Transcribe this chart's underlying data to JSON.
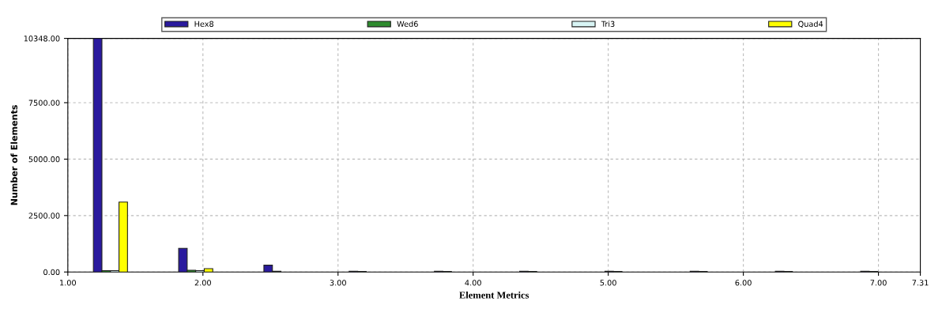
{
  "chart_data": {
    "type": "bar",
    "xlabel": "Element Metrics",
    "ylabel": "Number of Elements",
    "x": [
      1.3155,
      1.9465,
      2.5775,
      3.2085,
      3.8395,
      4.4705,
      5.1015,
      5.7325,
      6.3635,
      6.9945
    ],
    "series": [
      {
        "name": "Hex8",
        "color": "#2a1a9e",
        "values": [
          10348,
          1050,
          300,
          30,
          30,
          30,
          30,
          30,
          30,
          30
        ]
      },
      {
        "name": "Wed6",
        "color": "#2e8b2e",
        "values": [
          60,
          80,
          30,
          20,
          20,
          20,
          20,
          20,
          20,
          20
        ]
      },
      {
        "name": "Tri3",
        "color": "#d8f4f4",
        "values": [
          60,
          60,
          null,
          null,
          null,
          null,
          null,
          null,
          null,
          null
        ]
      },
      {
        "name": "Quad4",
        "color": "#ffff00",
        "values": [
          3100,
          150,
          null,
          null,
          null,
          null,
          null,
          null,
          null,
          null
        ]
      }
    ],
    "xlim": [
      1.0,
      7.31
    ],
    "xticks": [
      {
        "value": 1,
        "label": "1.00"
      },
      {
        "value": 2,
        "label": "2.00"
      },
      {
        "value": 3,
        "label": "3.00"
      },
      {
        "value": 4,
        "label": "4.00"
      },
      {
        "value": 5,
        "label": "5.00"
      },
      {
        "value": 6,
        "label": "6.00"
      },
      {
        "value": 7,
        "label": "7.00"
      },
      {
        "value": 7.31,
        "label": "7.31"
      }
    ],
    "ylim": [
      0,
      10348
    ],
    "yticks": [
      {
        "value": 0,
        "label": "0.00"
      },
      {
        "value": 2500,
        "label": "2500.00"
      },
      {
        "value": 5000,
        "label": "5000.00"
      },
      {
        "value": 7500,
        "label": "7500.00"
      },
      {
        "value": 10348,
        "label": "10348.00"
      }
    ],
    "grid": true,
    "legend": "top"
  }
}
